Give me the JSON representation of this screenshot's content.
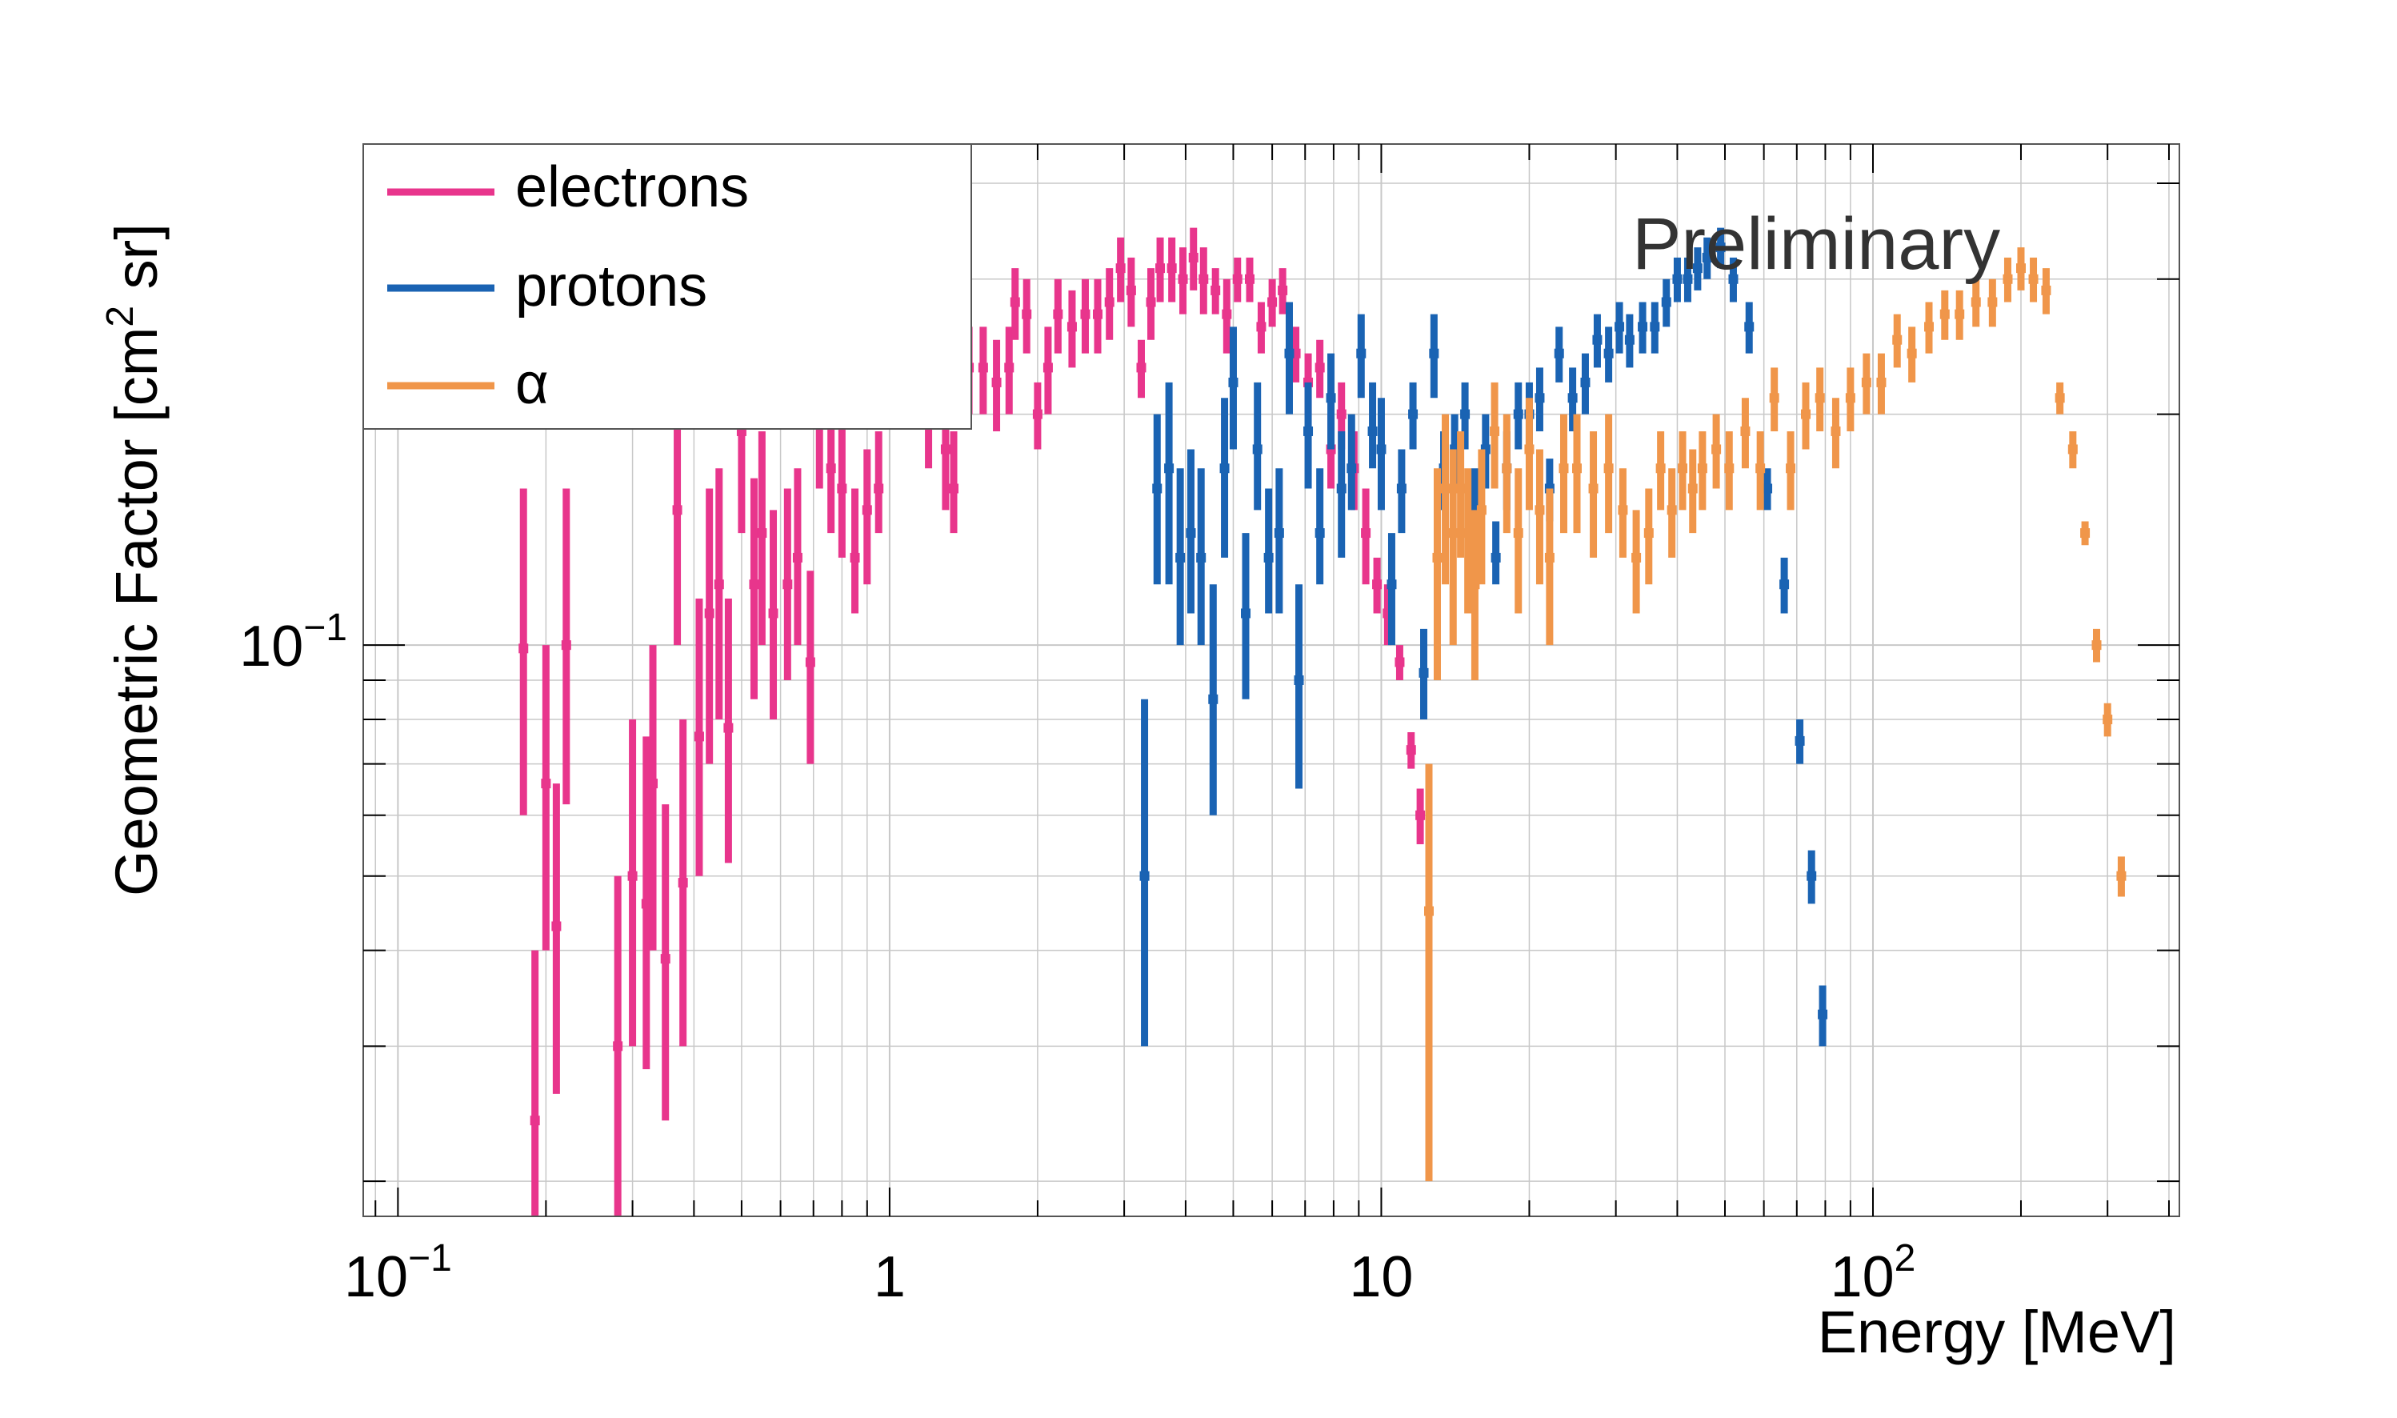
{
  "chart_data": {
    "type": "scatter",
    "title": "",
    "annotation": "Preliminary",
    "xlabel": "Energy [MeV]",
    "ylabel": "Geometric Factor [cm",
    "ylabel_sup": "2",
    "ylabel_tail": " sr]",
    "xscale": "log",
    "yscale": "log",
    "xlim": [
      0.085,
      420
    ],
    "ylim": [
      0.018,
      0.45
    ],
    "grid": true,
    "legend_position": "top-left",
    "x_ticks": [
      {
        "value": 0.1,
        "base": "10",
        "exp": "−1"
      },
      {
        "value": 1,
        "base": "1",
        "exp": ""
      },
      {
        "value": 10,
        "base": "10",
        "exp": ""
      },
      {
        "value": 100,
        "base": "10",
        "exp": "2"
      }
    ],
    "y_ticks": [
      {
        "value": 0.1,
        "base": "10",
        "exp": "−1"
      }
    ],
    "series": [
      {
        "name": "electrons",
        "color": "#e8358c",
        "points": [
          [
            0.18,
            0.099,
            0.06,
            0.16
          ],
          [
            0.19,
            0.024,
            0.015,
            0.04
          ],
          [
            0.2,
            0.066,
            0.04,
            0.1
          ],
          [
            0.21,
            0.043,
            0.026,
            0.066
          ],
          [
            0.22,
            0.1,
            0.062,
            0.16
          ],
          [
            0.28,
            0.03,
            0.018,
            0.05
          ],
          [
            0.3,
            0.05,
            0.03,
            0.08
          ],
          [
            0.32,
            0.046,
            0.028,
            0.076
          ],
          [
            0.33,
            0.066,
            0.04,
            0.1
          ],
          [
            0.35,
            0.039,
            0.024,
            0.062
          ],
          [
            0.37,
            0.15,
            0.1,
            0.22
          ],
          [
            0.38,
            0.049,
            0.03,
            0.08
          ],
          [
            0.41,
            0.076,
            0.05,
            0.115
          ],
          [
            0.43,
            0.11,
            0.07,
            0.16
          ],
          [
            0.45,
            0.12,
            0.08,
            0.17
          ],
          [
            0.47,
            0.078,
            0.052,
            0.115
          ],
          [
            0.5,
            0.19,
            0.14,
            0.26
          ],
          [
            0.53,
            0.12,
            0.085,
            0.165
          ],
          [
            0.55,
            0.14,
            0.1,
            0.19
          ],
          [
            0.58,
            0.11,
            0.08,
            0.15
          ],
          [
            0.62,
            0.12,
            0.09,
            0.16
          ],
          [
            0.65,
            0.13,
            0.1,
            0.17
          ],
          [
            0.69,
            0.095,
            0.07,
            0.125
          ],
          [
            0.72,
            0.2,
            0.16,
            0.25
          ],
          [
            0.76,
            0.17,
            0.14,
            0.21
          ],
          [
            0.8,
            0.16,
            0.13,
            0.2
          ],
          [
            0.85,
            0.13,
            0.11,
            0.16
          ],
          [
            0.9,
            0.15,
            0.12,
            0.18
          ],
          [
            0.95,
            0.16,
            0.14,
            0.19
          ],
          [
            1.05,
            0.24,
            0.2,
            0.28
          ],
          [
            1.1,
            0.23,
            0.2,
            0.27
          ],
          [
            1.2,
            0.2,
            0.17,
            0.23
          ],
          [
            1.3,
            0.18,
            0.15,
            0.21
          ],
          [
            1.35,
            0.16,
            0.14,
            0.19
          ],
          [
            1.45,
            0.23,
            0.2,
            0.26
          ],
          [
            1.55,
            0.23,
            0.2,
            0.26
          ],
          [
            1.65,
            0.22,
            0.19,
            0.25
          ],
          [
            1.75,
            0.23,
            0.2,
            0.26
          ],
          [
            1.8,
            0.28,
            0.25,
            0.31
          ],
          [
            1.9,
            0.27,
            0.24,
            0.3
          ],
          [
            2.0,
            0.2,
            0.18,
            0.22
          ],
          [
            2.1,
            0.23,
            0.2,
            0.26
          ],
          [
            2.2,
            0.27,
            0.24,
            0.3
          ],
          [
            2.35,
            0.26,
            0.23,
            0.29
          ],
          [
            2.5,
            0.27,
            0.24,
            0.3
          ],
          [
            2.65,
            0.27,
            0.24,
            0.3
          ],
          [
            2.8,
            0.28,
            0.25,
            0.31
          ],
          [
            2.95,
            0.31,
            0.28,
            0.34
          ],
          [
            3.1,
            0.29,
            0.26,
            0.32
          ],
          [
            3.25,
            0.23,
            0.21,
            0.25
          ],
          [
            3.4,
            0.28,
            0.25,
            0.31
          ],
          [
            3.55,
            0.31,
            0.28,
            0.34
          ],
          [
            3.75,
            0.31,
            0.28,
            0.34
          ],
          [
            3.95,
            0.3,
            0.27,
            0.33
          ],
          [
            4.15,
            0.32,
            0.29,
            0.35
          ],
          [
            4.35,
            0.3,
            0.27,
            0.33
          ],
          [
            4.6,
            0.29,
            0.27,
            0.31
          ],
          [
            4.85,
            0.27,
            0.24,
            0.3
          ],
          [
            5.1,
            0.3,
            0.28,
            0.32
          ],
          [
            5.4,
            0.3,
            0.28,
            0.32
          ],
          [
            5.7,
            0.26,
            0.24,
            0.28
          ],
          [
            6.0,
            0.28,
            0.26,
            0.3
          ],
          [
            6.3,
            0.29,
            0.27,
            0.31
          ],
          [
            6.7,
            0.24,
            0.22,
            0.26
          ],
          [
            7.1,
            0.22,
            0.2,
            0.24
          ],
          [
            7.5,
            0.23,
            0.21,
            0.25
          ],
          [
            7.9,
            0.18,
            0.16,
            0.2
          ],
          [
            8.3,
            0.2,
            0.18,
            0.22
          ],
          [
            8.8,
            0.17,
            0.15,
            0.19
          ],
          [
            9.3,
            0.14,
            0.12,
            0.16
          ],
          [
            9.8,
            0.12,
            0.11,
            0.13
          ],
          [
            10.3,
            0.11,
            0.1,
            0.12
          ],
          [
            10.9,
            0.095,
            0.09,
            0.1
          ],
          [
            11.5,
            0.073,
            0.069,
            0.077
          ],
          [
            12.0,
            0.06,
            0.055,
            0.065
          ]
        ]
      },
      {
        "name": "protons",
        "color": "#1a63b3",
        "points": [
          [
            3.3,
            0.05,
            0.03,
            0.085
          ],
          [
            3.5,
            0.16,
            0.12,
            0.2
          ],
          [
            3.7,
            0.17,
            0.12,
            0.22
          ],
          [
            3.9,
            0.13,
            0.1,
            0.17
          ],
          [
            4.1,
            0.14,
            0.11,
            0.18
          ],
          [
            4.3,
            0.13,
            0.1,
            0.17
          ],
          [
            4.55,
            0.085,
            0.06,
            0.12
          ],
          [
            4.8,
            0.17,
            0.13,
            0.21
          ],
          [
            5.0,
            0.22,
            0.18,
            0.26
          ],
          [
            5.3,
            0.11,
            0.085,
            0.14
          ],
          [
            5.6,
            0.18,
            0.15,
            0.22
          ],
          [
            5.9,
            0.13,
            0.11,
            0.16
          ],
          [
            6.2,
            0.14,
            0.11,
            0.17
          ],
          [
            6.5,
            0.24,
            0.2,
            0.28
          ],
          [
            6.8,
            0.09,
            0.065,
            0.12
          ],
          [
            7.1,
            0.19,
            0.16,
            0.22
          ],
          [
            7.5,
            0.14,
            0.12,
            0.17
          ],
          [
            7.9,
            0.21,
            0.18,
            0.24
          ],
          [
            8.3,
            0.16,
            0.13,
            0.19
          ],
          [
            8.7,
            0.17,
            0.15,
            0.2
          ],
          [
            9.1,
            0.24,
            0.21,
            0.27
          ],
          [
            9.6,
            0.19,
            0.17,
            0.22
          ],
          [
            10.0,
            0.18,
            0.15,
            0.21
          ],
          [
            10.5,
            0.12,
            0.1,
            0.14
          ],
          [
            11.0,
            0.16,
            0.14,
            0.18
          ],
          [
            11.6,
            0.2,
            0.18,
            0.22
          ],
          [
            12.2,
            0.092,
            0.08,
            0.105
          ],
          [
            12.8,
            0.24,
            0.21,
            0.27
          ],
          [
            13.4,
            0.17,
            0.15,
            0.19
          ],
          [
            14.1,
            0.18,
            0.16,
            0.2
          ],
          [
            14.8,
            0.2,
            0.18,
            0.22
          ],
          [
            15.5,
            0.15,
            0.13,
            0.17
          ],
          [
            16.3,
            0.18,
            0.16,
            0.2
          ],
          [
            17.1,
            0.13,
            0.12,
            0.145
          ],
          [
            18.0,
            0.17,
            0.15,
            0.19
          ],
          [
            19.0,
            0.2,
            0.18,
            0.22
          ],
          [
            20.0,
            0.2,
            0.18,
            0.22
          ],
          [
            21.0,
            0.21,
            0.19,
            0.23
          ],
          [
            22.0,
            0.16,
            0.145,
            0.175
          ],
          [
            23.0,
            0.24,
            0.22,
            0.26
          ],
          [
            24.5,
            0.21,
            0.19,
            0.23
          ],
          [
            26.0,
            0.22,
            0.2,
            0.24
          ],
          [
            27.5,
            0.25,
            0.23,
            0.27
          ],
          [
            29.0,
            0.24,
            0.22,
            0.26
          ],
          [
            30.5,
            0.26,
            0.24,
            0.28
          ],
          [
            32.0,
            0.25,
            0.23,
            0.27
          ],
          [
            34.0,
            0.26,
            0.24,
            0.28
          ],
          [
            36.0,
            0.26,
            0.24,
            0.28
          ],
          [
            38.0,
            0.28,
            0.26,
            0.3
          ],
          [
            40.0,
            0.3,
            0.28,
            0.32
          ],
          [
            42.0,
            0.3,
            0.28,
            0.32
          ],
          [
            44.0,
            0.31,
            0.29,
            0.33
          ],
          [
            46.0,
            0.32,
            0.3,
            0.34
          ],
          [
            49.0,
            0.33,
            0.31,
            0.35
          ],
          [
            52.0,
            0.3,
            0.28,
            0.32
          ],
          [
            56.0,
            0.26,
            0.24,
            0.28
          ],
          [
            61.0,
            0.16,
            0.15,
            0.17
          ],
          [
            66.0,
            0.12,
            0.11,
            0.13
          ],
          [
            71.0,
            0.075,
            0.07,
            0.08
          ],
          [
            75.0,
            0.05,
            0.046,
            0.054
          ],
          [
            79.0,
            0.033,
            0.03,
            0.036
          ]
        ]
      },
      {
        "name": "α",
        "color": "#f0964a",
        "points": [
          [
            12.5,
            0.045,
            0.02,
            0.07
          ],
          [
            13.0,
            0.13,
            0.09,
            0.17
          ],
          [
            13.5,
            0.16,
            0.12,
            0.2
          ],
          [
            14.0,
            0.14,
            0.1,
            0.18
          ],
          [
            14.5,
            0.16,
            0.13,
            0.19
          ],
          [
            15.0,
            0.14,
            0.11,
            0.17
          ],
          [
            15.5,
            0.12,
            0.09,
            0.15
          ],
          [
            16.0,
            0.15,
            0.12,
            0.18
          ],
          [
            17.0,
            0.19,
            0.16,
            0.22
          ],
          [
            18.0,
            0.17,
            0.14,
            0.2
          ],
          [
            19.0,
            0.14,
            0.11,
            0.17
          ],
          [
            20.0,
            0.18,
            0.15,
            0.21
          ],
          [
            21.0,
            0.15,
            0.12,
            0.18
          ],
          [
            22.0,
            0.13,
            0.1,
            0.16
          ],
          [
            23.5,
            0.17,
            0.14,
            0.2
          ],
          [
            25.0,
            0.17,
            0.14,
            0.2
          ],
          [
            27.0,
            0.16,
            0.13,
            0.19
          ],
          [
            29.0,
            0.17,
            0.14,
            0.2
          ],
          [
            31.0,
            0.15,
            0.13,
            0.17
          ],
          [
            33.0,
            0.13,
            0.11,
            0.15
          ],
          [
            35.0,
            0.14,
            0.12,
            0.16
          ],
          [
            37.0,
            0.17,
            0.15,
            0.19
          ],
          [
            39.0,
            0.15,
            0.13,
            0.17
          ],
          [
            41.0,
            0.17,
            0.15,
            0.19
          ],
          [
            43.0,
            0.16,
            0.14,
            0.18
          ],
          [
            45.0,
            0.17,
            0.15,
            0.19
          ],
          [
            48.0,
            0.18,
            0.16,
            0.2
          ],
          [
            51.0,
            0.17,
            0.15,
            0.19
          ],
          [
            55.0,
            0.19,
            0.17,
            0.21
          ],
          [
            59.0,
            0.17,
            0.15,
            0.19
          ],
          [
            63.0,
            0.21,
            0.19,
            0.23
          ],
          [
            68.0,
            0.17,
            0.15,
            0.19
          ],
          [
            73.0,
            0.2,
            0.18,
            0.22
          ],
          [
            78.0,
            0.21,
            0.19,
            0.23
          ],
          [
            84.0,
            0.19,
            0.17,
            0.21
          ],
          [
            90.0,
            0.21,
            0.19,
            0.23
          ],
          [
            97.0,
            0.22,
            0.2,
            0.24
          ],
          [
            104.0,
            0.22,
            0.2,
            0.24
          ],
          [
            112.0,
            0.25,
            0.23,
            0.27
          ],
          [
            120.0,
            0.24,
            0.22,
            0.26
          ],
          [
            130.0,
            0.26,
            0.24,
            0.28
          ],
          [
            140.0,
            0.27,
            0.25,
            0.29
          ],
          [
            150.0,
            0.27,
            0.25,
            0.29
          ],
          [
            162.0,
            0.28,
            0.26,
            0.3
          ],
          [
            175.0,
            0.28,
            0.26,
            0.3
          ],
          [
            188.0,
            0.3,
            0.28,
            0.32
          ],
          [
            200.0,
            0.31,
            0.29,
            0.33
          ],
          [
            212.0,
            0.3,
            0.28,
            0.32
          ],
          [
            225.0,
            0.29,
            0.27,
            0.31
          ],
          [
            240.0,
            0.21,
            0.2,
            0.22
          ],
          [
            255.0,
            0.18,
            0.17,
            0.19
          ],
          [
            270.0,
            0.14,
            0.135,
            0.145
          ],
          [
            285.0,
            0.1,
            0.095,
            0.105
          ],
          [
            300.0,
            0.08,
            0.076,
            0.084
          ],
          [
            320.0,
            0.05,
            0.047,
            0.053
          ]
        ]
      }
    ]
  }
}
